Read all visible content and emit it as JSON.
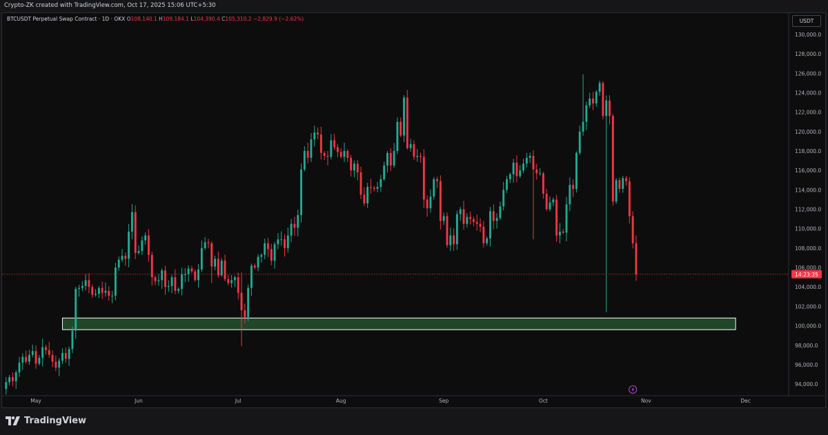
{
  "header": {
    "caption": "Crypto-ZK created with TradingView.com, Oct 17, 2025 15:06 UTC+5:30"
  },
  "legend": {
    "symbol": "BTCUSDT Perpetual Swap Contract · 1D · OKX",
    "open_label": "O",
    "open": "108,140.1",
    "high_label": "H",
    "high": "109,184.1",
    "low_label": "L",
    "low": "104,390.4",
    "close_label": "C",
    "close": "105,310.2",
    "change": "−2,829.9 (−2.62%)"
  },
  "currency": "USDT",
  "countdown": "14:23:35",
  "brand": {
    "name": "TradingView"
  },
  "colors": {
    "up": "#22ab94",
    "down": "#f23645",
    "zone": "#2b5f38",
    "background": "#0d0d0d"
  },
  "chart_data": {
    "type": "candlestick",
    "y_axis": {
      "ticks": [
        94000,
        96000,
        98000,
        100000,
        102000,
        104000,
        106000,
        108000,
        110000,
        112000,
        114000,
        116000,
        118000,
        120000,
        122000,
        124000,
        126000,
        128000,
        130000
      ],
      "tick_labels": [
        "94,000.0",
        "96,000.0",
        "98,000.0",
        "100,000.0",
        "102,000.0",
        "104,000.0",
        "106,000.0",
        "108,000.0",
        "110,000.0",
        "112,000.0",
        "114,000.0",
        "116,000.0",
        "118,000.0",
        "120,000.0",
        "122,000.0",
        "124,000.0",
        "126,000.0",
        "128,000.0",
        "130,000.0"
      ],
      "ylim": [
        92800,
        132200
      ],
      "position": "right"
    },
    "x_axis": {
      "labels": [
        "May",
        "Jun",
        "Jul",
        "Aug",
        "Sep",
        "Oct",
        "Nov",
        "Dec"
      ],
      "label_dates": [
        "2025-05-01",
        "2025-06-01",
        "2025-07-01",
        "2025-08-01",
        "2025-09-01",
        "2025-10-01",
        "2025-11-01",
        "2025-12-01"
      ],
      "xlim": [
        "2025-04-21",
        "2025-12-14"
      ]
    },
    "current_price": 105310.2,
    "support_zone": {
      "from_date": "2025-05-09",
      "to_date": "2025-11-28",
      "low": 99600,
      "high": 100800
    },
    "closes": [
      94200,
      94700,
      94300,
      95200,
      96200,
      96800,
      96300,
      97000,
      97400,
      96100,
      96700,
      97800,
      97500,
      97000,
      96300,
      95700,
      96400,
      97200,
      96600,
      97600,
      99500,
      103800,
      103900,
      104100,
      104700,
      104000,
      103200,
      103300,
      103900,
      103400,
      103600,
      103100,
      103100,
      106000,
      106800,
      107200,
      106900,
      109700,
      111700,
      107500,
      107700,
      108800,
      109300,
      107300,
      105000,
      104600,
      104700,
      105700,
      104000,
      104100,
      105000,
      103600,
      103800,
      105300,
      105300,
      105900,
      105600,
      104700,
      105800,
      108000,
      108600,
      108500,
      106100,
      106900,
      105200,
      106700,
      104800,
      104400,
      104700,
      105000,
      103400,
      101600,
      100900,
      103900,
      106200,
      106000,
      107100,
      107300,
      108500,
      107900,
      106700,
      108400,
      108900,
      108900,
      108000,
      109300,
      110500,
      110100,
      111400,
      116100,
      118000,
      117300,
      119200,
      119900,
      119700,
      117800,
      117500,
      117400,
      119100,
      118400,
      117900,
      117400,
      118000,
      117300,
      116000,
      116700,
      115800,
      113500,
      112600,
      114300,
      114200,
      114100,
      114300,
      115100,
      116500,
      117800,
      116500,
      118000,
      121000,
      119600,
      123500,
      118300,
      118700,
      117400,
      117500,
      117400,
      113000,
      112100,
      113300,
      115100,
      114900,
      110800,
      111300,
      108300,
      109300,
      108400,
      111500,
      112000,
      110500,
      111200,
      111000,
      110700,
      110500,
      110200,
      108500,
      109000,
      111800,
      110800,
      111100,
      112300,
      114000,
      115100,
      115600,
      116800,
      115400,
      116000,
      116700,
      117300,
      117500,
      116100,
      115700,
      115700,
      113600,
      112000,
      112700,
      113000,
      109300,
      109700,
      109600,
      112500,
      114500,
      114100,
      117800,
      120000,
      121000,
      122700,
      123400,
      122900,
      124100,
      125000,
      121600,
      123200,
      121600,
      112800,
      115000,
      114100,
      115200,
      114900,
      111300,
      108500,
      105300
    ]
  }
}
